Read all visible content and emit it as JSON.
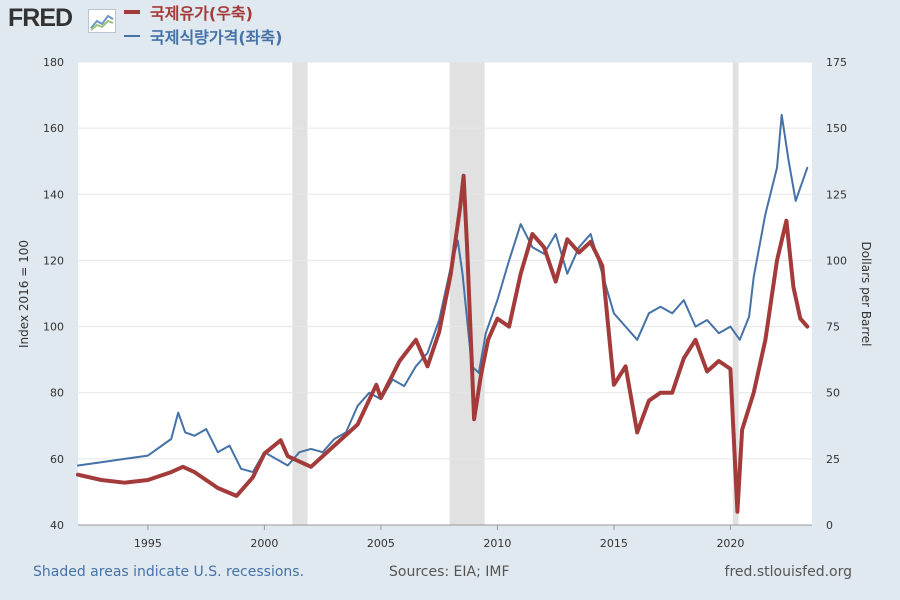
{
  "brand": {
    "logo_text": "FRED"
  },
  "legend": {
    "oil_label": "국제유가(우축)",
    "food_label": "국제식량가격(좌축)",
    "oil_color": "#a33b3a",
    "food_color": "#4572a7"
  },
  "footer": {
    "note": "Shaded areas indicate U.S. recessions.",
    "sources": "Sources: EIA; IMF",
    "site": "fred.stlouisfed.org"
  },
  "chart_data": {
    "type": "line",
    "x_range": [
      1992,
      2023.5
    ],
    "left_axis": {
      "label": "Index 2016 = 100",
      "min": 40,
      "max": 180,
      "ticks": [
        40,
        60,
        80,
        100,
        120,
        140,
        160,
        180
      ]
    },
    "right_axis": {
      "label": "Dollars per Barrel",
      "min": 0,
      "max": 175,
      "ticks": [
        0,
        25,
        50,
        75,
        100,
        125,
        150,
        175
      ]
    },
    "x_ticks": [
      1995,
      2000,
      2005,
      2010,
      2015,
      2020
    ],
    "recessions": [
      [
        2001.2,
        2001.85
      ],
      [
        2007.95,
        2009.45
      ],
      [
        2020.1,
        2020.35
      ]
    ],
    "series": [
      {
        "name": "국제식량가격(좌축)",
        "axis": "left",
        "color": "#4572a7",
        "x": [
          1992.0,
          1993.0,
          1994.0,
          1995.0,
          1996.0,
          1996.3,
          1996.6,
          1997.0,
          1997.5,
          1998.0,
          1998.5,
          1999.0,
          1999.5,
          2000.0,
          2000.5,
          2001.0,
          2001.5,
          2002.0,
          2002.5,
          2003.0,
          2003.5,
          2004.0,
          2004.5,
          2005.0,
          2005.5,
          2006.0,
          2006.5,
          2007.0,
          2007.5,
          2008.0,
          2008.3,
          2008.5,
          2008.9,
          2009.2,
          2009.5,
          2010.0,
          2010.5,
          2011.0,
          2011.5,
          2012.0,
          2012.5,
          2013.0,
          2013.5,
          2014.0,
          2014.5,
          2015.0,
          2015.5,
          2016.0,
          2016.5,
          2017.0,
          2017.5,
          2018.0,
          2018.5,
          2019.0,
          2019.5,
          2020.0,
          2020.4,
          2020.8,
          2021.0,
          2021.5,
          2022.0,
          2022.2,
          2022.5,
          2022.8,
          2023.0,
          2023.3
        ],
        "y": [
          58,
          59,
          60,
          61,
          66,
          74,
          68,
          67,
          69,
          62,
          64,
          57,
          56,
          62,
          60,
          58,
          62,
          63,
          62,
          66,
          68,
          76,
          80,
          78,
          84,
          82,
          88,
          92,
          102,
          118,
          126,
          116,
          88,
          86,
          98,
          108,
          120,
          131,
          124,
          122,
          128,
          116,
          124,
          128,
          116,
          104,
          100,
          96,
          104,
          106,
          104,
          108,
          100,
          102,
          98,
          100,
          96,
          103,
          115,
          134,
          148,
          164,
          150,
          138,
          142,
          148
        ]
      },
      {
        "name": "국제유가(우축)",
        "axis": "right",
        "color": "#a33b3a",
        "x": [
          1992.0,
          1993.0,
          1994.0,
          1995.0,
          1996.0,
          1996.5,
          1997.0,
          1998.0,
          1998.8,
          1999.5,
          2000.0,
          2000.7,
          2001.0,
          2002.0,
          2003.0,
          2004.0,
          2004.8,
          2005.0,
          2005.8,
          2006.5,
          2007.0,
          2007.5,
          2008.0,
          2008.4,
          2008.55,
          2008.7,
          2009.0,
          2009.3,
          2009.6,
          2010.0,
          2010.5,
          2011.0,
          2011.5,
          2012.0,
          2012.5,
          2013.0,
          2013.5,
          2014.0,
          2014.5,
          2015.0,
          2015.5,
          2016.0,
          2016.5,
          2017.0,
          2017.5,
          2018.0,
          2018.5,
          2019.0,
          2019.5,
          2020.0,
          2020.3,
          2020.5,
          2021.0,
          2021.5,
          2022.0,
          2022.4,
          2022.7,
          2023.0,
          2023.3
        ],
        "y": [
          19,
          17,
          16,
          17,
          20,
          22,
          20,
          14,
          11,
          18,
          27,
          32,
          26,
          22,
          30,
          38,
          53,
          48,
          62,
          70,
          60,
          73,
          95,
          120,
          132,
          105,
          40,
          57,
          70,
          78,
          75,
          95,
          110,
          105,
          92,
          108,
          103,
          107,
          98,
          53,
          60,
          35,
          47,
          50,
          50,
          63,
          70,
          58,
          62,
          59,
          5,
          36,
          50,
          70,
          100,
          115,
          90,
          78,
          75
        ]
      }
    ]
  }
}
